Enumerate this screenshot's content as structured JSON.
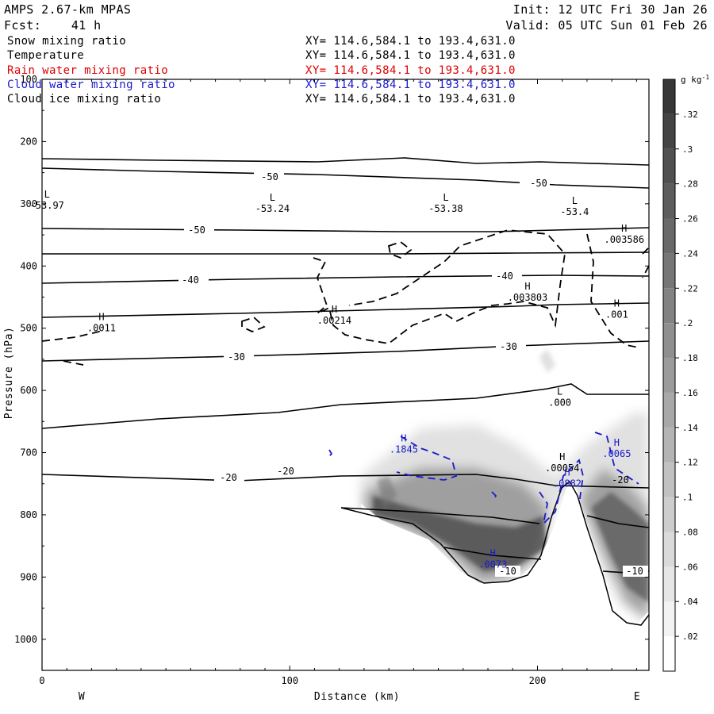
{
  "header": {
    "model": "AMPS 2.67-km MPAS",
    "init": "Init: 12 UTC Fri 30 Jan 26",
    "fcst": "Fcst:    41 h",
    "valid": "Valid: 05 UTC Sun 01 Feb 26"
  },
  "legend": [
    {
      "name": "Snow mixing ratio",
      "xy": "XY= 114.6,584.1 to 193.4,631.0",
      "color": "#000000"
    },
    {
      "name": "Temperature",
      "xy": "XY= 114.6,584.1 to 193.4,631.0",
      "color": "#000000"
    },
    {
      "name": "Rain water mixing ratio",
      "xy": "XY= 114.6,584.1 to 193.4,631.0",
      "color": "#e00000"
    },
    {
      "name": "Cloud water mixing ratio",
      "xy": "XY= 114.6,584.1 to 193.4,631.0",
      "color": "#1a1acc"
    },
    {
      "name": "Cloud ice mixing ratio",
      "xy": "XY= 114.6,584.1 to 193.4,631.0",
      "color": "#000000"
    }
  ],
  "chart_data": {
    "type": "contour",
    "xlabel": "Distance (km)",
    "ylabel": "Pressure (hPa)",
    "xlim": [
      0,
      245
    ],
    "ylim": [
      1050,
      100
    ],
    "x_ticks": [
      0,
      100,
      200
    ],
    "y_ticks": [
      100,
      200,
      300,
      400,
      500,
      600,
      700,
      800,
      900,
      1000
    ],
    "x_end_labels": {
      "left": "W",
      "right": "E"
    },
    "colorbar": {
      "unit": "g kg",
      "unit_sup": "-1",
      "ticks": [
        ".02",
        ".04",
        ".06",
        ".08",
        ".1",
        ".12",
        ".14",
        ".16",
        ".18",
        ".2",
        ".22",
        ".24",
        ".26",
        ".28",
        ".3",
        ".32"
      ],
      "range": [
        0,
        0.34
      ]
    },
    "temperature_labels": [
      "-50",
      "-50",
      "-50",
      "-40",
      "-40",
      "-30",
      "-30",
      "-20",
      "-20",
      "-20",
      "-10",
      "-10"
    ],
    "extrema": [
      {
        "type": "L",
        "value": "-53.97",
        "x": 2,
        "p": 308
      },
      {
        "type": "L",
        "value": "-53.24",
        "x": 93,
        "p": 313
      },
      {
        "type": "L",
        "value": "-53.38",
        "x": 163,
        "p": 313
      },
      {
        "type": "L",
        "value": "-53.4",
        "x": 215,
        "p": 318
      },
      {
        "type": "H",
        "value": ".003586",
        "x": 235,
        "p": 363
      },
      {
        "type": "H",
        "value": ".003803",
        "x": 196,
        "p": 456
      },
      {
        "type": "H",
        "value": ".0011",
        "x": 24,
        "p": 505
      },
      {
        "type": "H",
        "value": ".00214",
        "x": 118,
        "p": 493
      },
      {
        "type": "H",
        "value": ".001",
        "x": 232,
        "p": 483
      },
      {
        "type": "L",
        "value": ".000",
        "x": 209,
        "p": 625
      },
      {
        "type": "H",
        "value": ".00054",
        "x": 210,
        "p": 730
      },
      {
        "type": "H",
        "value": ".1845",
        "x": 146,
        "p": 700,
        "series": "Cloud water mixing ratio"
      },
      {
        "type": "H",
        "value": ".0065",
        "x": 232,
        "p": 707,
        "series": "Cloud water mixing ratio"
      },
      {
        "type": "H",
        "value": ".0882",
        "x": 212,
        "p": 755,
        "series": "Cloud water mixing ratio"
      },
      {
        "type": "H",
        "value": ".0073",
        "x": 182,
        "p": 885,
        "series": "Cloud water mixing ratio"
      }
    ]
  },
  "colors": {
    "temperature": "#000000",
    "cloud_ice": "#000000",
    "cloud_water": "#1a1acc",
    "rain_water": "#e00000",
    "snow_shading": "#3a3a3a"
  }
}
